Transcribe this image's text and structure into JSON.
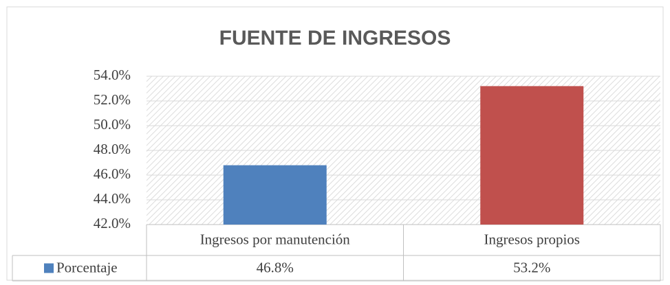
{
  "chart_data": {
    "type": "bar",
    "title": "FUENTE DE INGRESOS",
    "categories": [
      "Ingresos por manutención",
      "Ingresos propios"
    ],
    "series": [
      {
        "name": "Porcentaje",
        "color": "#4f81bd",
        "point_colors": [
          "#4f81bd",
          "#c0504d"
        ],
        "values": [
          46.8,
          53.2
        ],
        "value_labels": [
          "46.8%",
          "53.2%"
        ]
      }
    ],
    "ylim": [
      42,
      54
    ],
    "yticks": [
      {
        "value": 42,
        "label": "42.0%"
      },
      {
        "value": 44,
        "label": "44.0%"
      },
      {
        "value": 46,
        "label": "46.0%"
      },
      {
        "value": 48,
        "label": "48.0%"
      },
      {
        "value": 50,
        "label": "50.0%"
      },
      {
        "value": 52,
        "label": "52.0%"
      },
      {
        "value": 54,
        "label": "54.0%"
      }
    ],
    "grid": true,
    "data_table": true
  }
}
